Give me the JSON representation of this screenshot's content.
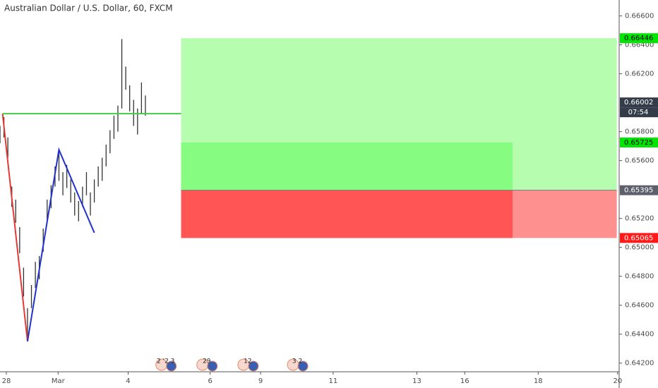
{
  "chart_data": {
    "type": "ohlc",
    "title": "Australian Dollar / U.S. Dollar, 60, FXCM",
    "xlim": [
      0,
      362.4
    ],
    "ylim": [
      0.6414,
      0.6671
    ],
    "xticks": [
      {
        "value": 3.7,
        "label": "28"
      },
      {
        "value": 34,
        "label": "Mar"
      },
      {
        "value": 75,
        "label": "4"
      },
      {
        "value": 123,
        "label": "6"
      },
      {
        "value": 152.5,
        "label": "9"
      },
      {
        "value": 195,
        "label": "11"
      },
      {
        "value": 244,
        "label": "13"
      },
      {
        "value": 272,
        "label": "16"
      },
      {
        "value": 315,
        "label": "18"
      },
      {
        "value": 361.5,
        "label": "20"
      }
    ],
    "yticks": [
      {
        "value": 0.666,
        "label": "0.66600"
      },
      {
        "value": 0.664,
        "label": "0.66400"
      },
      {
        "value": 0.662,
        "label": "0.66200"
      },
      {
        "value": 0.658,
        "label": "0.65800"
      },
      {
        "value": 0.656,
        "label": "0.65600"
      },
      {
        "value": 0.652,
        "label": "0.65200"
      },
      {
        "value": 0.65,
        "label": "0.65000"
      },
      {
        "value": 0.648,
        "label": "0.64800"
      },
      {
        "value": 0.646,
        "label": "0.64600"
      },
      {
        "value": 0.644,
        "label": "0.64400"
      },
      {
        "value": 0.642,
        "label": "0.64200"
      }
    ],
    "series": [
      {
        "name": "AUDUSD",
        "color": "#333333",
        "x": [
          0,
          2.3,
          4.6,
          6.9,
          9.2,
          11.5,
          13.8,
          16.1,
          18.4,
          20.7,
          23,
          25.3,
          27.6,
          29.9,
          32.2,
          34.5,
          36.8,
          39.1,
          41.4,
          43.7,
          46,
          48.3,
          50.6,
          52.9,
          55.2,
          57.5,
          59.8,
          62.1,
          64.4,
          66.7,
          69,
          71.3,
          73.6,
          75.9,
          78.2,
          80.5,
          82.8,
          85.1
        ],
        "high": [
          0.6584,
          0.659,
          0.6576,
          0.6542,
          0.6533,
          0.6514,
          0.6486,
          0.6458,
          0.6474,
          0.649,
          0.6494,
          0.6513,
          0.6533,
          0.6543,
          0.6556,
          0.6566,
          0.6552,
          0.6557,
          0.6547,
          0.6538,
          0.6532,
          0.6542,
          0.6552,
          0.6538,
          0.6547,
          0.6556,
          0.6562,
          0.6571,
          0.6581,
          0.6591,
          0.6598,
          0.6644,
          0.6625,
          0.6612,
          0.6602,
          0.6596,
          0.6614,
          0.6605
        ],
        "low": [
          0.6572,
          0.6576,
          0.6562,
          0.6528,
          0.6517,
          0.6496,
          0.6466,
          0.6435,
          0.6458,
          0.6472,
          0.6478,
          0.6497,
          0.6517,
          0.6527,
          0.6542,
          0.6546,
          0.6536,
          0.6541,
          0.6531,
          0.6522,
          0.6518,
          0.6528,
          0.6536,
          0.6522,
          0.6531,
          0.6542,
          0.6546,
          0.6556,
          0.6565,
          0.6575,
          0.658,
          0.6596,
          0.6609,
          0.6594,
          0.6584,
          0.6578,
          0.6592,
          0.6591
        ]
      }
    ],
    "lines": [
      {
        "color": "#e53935",
        "x": [
          1.5,
          16.1
        ],
        "values": [
          0.65924,
          0.6435
        ]
      },
      {
        "color": "#2233cc",
        "x": [
          16.1,
          34.5,
          55.2
        ],
        "values": [
          0.6435,
          0.65675,
          0.65101
        ]
      },
      {
        "color": "#44cc44",
        "x": [
          1.5,
          106
        ],
        "values": [
          0.65924,
          0.65924
        ]
      }
    ],
    "position": {
      "x_start": 106,
      "x_progress": 300,
      "x_end": 361,
      "target": 0.66446,
      "reached": 0.65725,
      "entry": 0.65395,
      "stop": 0.65065
    },
    "price_labels": [
      {
        "value": 0.66446,
        "color": "#00e600"
      },
      {
        "value": 0.66002,
        "color": "#333c48"
      },
      {
        "value": 0.65725,
        "color": "#00e600"
      },
      {
        "value": 0.65395,
        "color": "#5d606b"
      },
      {
        "value": 0.65065,
        "color": "#ff1a1a"
      }
    ],
    "countdown": "07:54",
    "events": [
      {
        "x": 97,
        "label": "2 '2 3"
      },
      {
        "x": 121,
        "label": "29"
      },
      {
        "x": 145,
        "label": "12"
      },
      {
        "x": 174,
        "label": "3 2"
      }
    ]
  }
}
